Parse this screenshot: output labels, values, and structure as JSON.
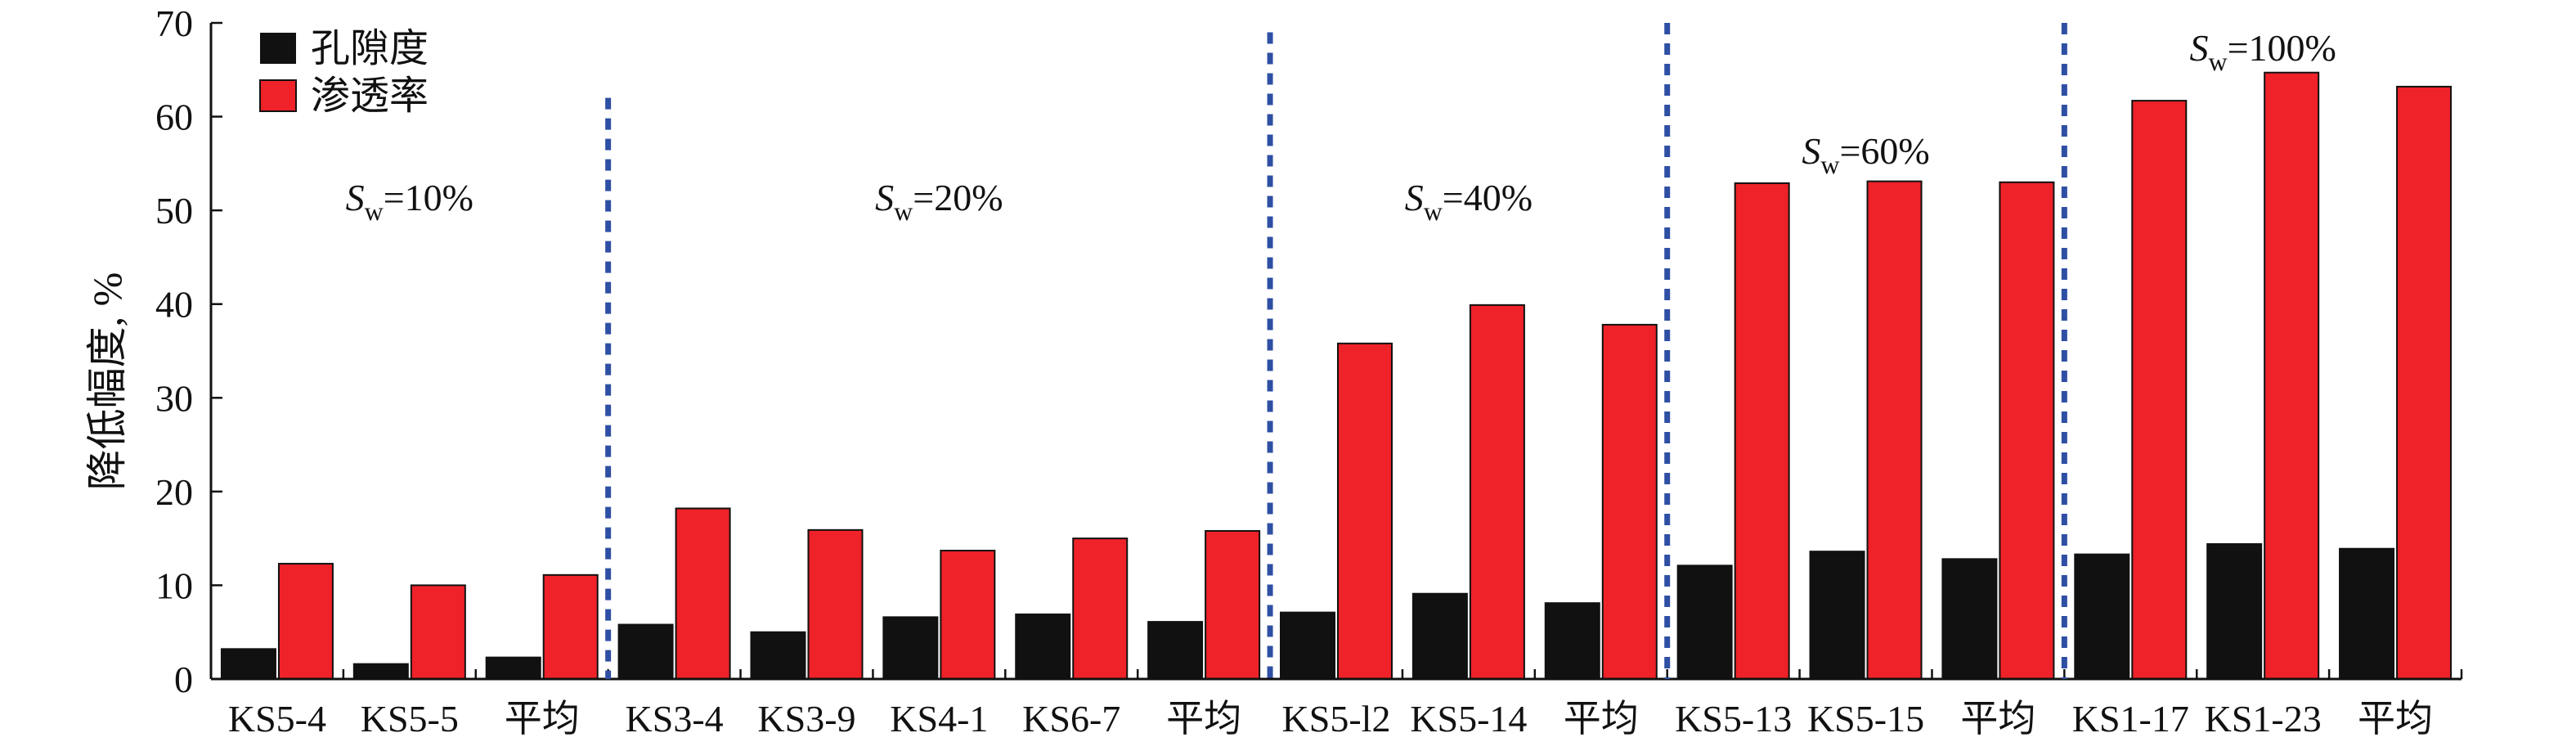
{
  "chart_data": {
    "type": "bar",
    "xlabel": "",
    "ylabel": "降低幅度, %",
    "ylim": [
      0,
      70
    ],
    "yticks": [
      0,
      10,
      20,
      30,
      40,
      50,
      60,
      70
    ],
    "grid": false,
    "legend_position": "top-left",
    "categories": [
      "KS5-4",
      "KS5-5",
      "平均",
      "KS3-4",
      "KS3-9",
      "KS4-1",
      "KS6-7",
      "平均",
      "KS5-l2",
      "KS5-14",
      "平均",
      "KS5-13",
      "KS5-15",
      "平均",
      "KS1-17",
      "KS1-23",
      "平均"
    ],
    "series": [
      {
        "name": "孔隙度",
        "color": "#111111",
        "values": [
          3.2,
          1.6,
          2.3,
          5.8,
          5.0,
          6.6,
          6.9,
          6.1,
          7.1,
          9.1,
          8.1,
          12.1,
          13.6,
          12.8,
          13.3,
          14.4,
          13.9
        ]
      },
      {
        "name": "渗透率",
        "color": "#ee2228",
        "values": [
          12.3,
          10.0,
          11.1,
          18.2,
          15.9,
          13.7,
          15.0,
          15.8,
          35.8,
          39.9,
          37.8,
          52.9,
          53.1,
          53.0,
          61.7,
          64.7,
          63.2
        ]
      }
    ],
    "groups": [
      {
        "symbol": "S",
        "sub": "w",
        "rest": "=10%"
      },
      {
        "symbol": "S",
        "sub": "w",
        "rest": "=20%"
      },
      {
        "symbol": "S",
        "sub": "w",
        "rest": "=40%"
      },
      {
        "symbol": "S",
        "sub": "w",
        "rest": "=60%"
      },
      {
        "symbol": "S",
        "sub": "w",
        "rest": "=100%"
      }
    ],
    "separator_color": "#2e4fa3"
  }
}
